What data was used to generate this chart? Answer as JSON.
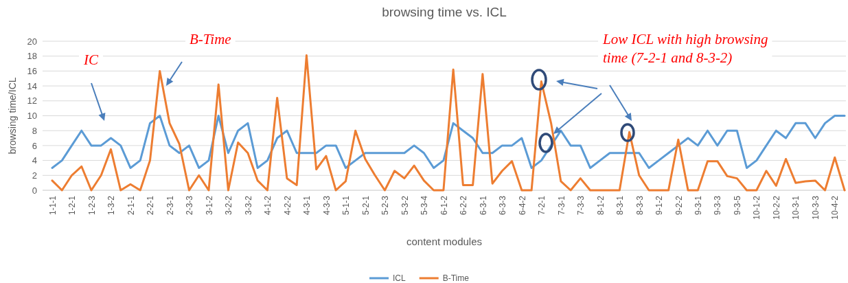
{
  "chart_data": {
    "type": "line",
    "title": "browsing time vs. ICL",
    "xlabel": "content modules",
    "ylabel": "browsing time/ICL",
    "categories": [
      "1-1-1",
      null,
      "1-2-1",
      null,
      "1-2-3",
      null,
      "1-3-2",
      null,
      "2-1-1",
      null,
      "2-2-1",
      null,
      "2-3-1",
      null,
      "2-3-3",
      null,
      "3-1-2",
      null,
      "3-2-2",
      null,
      "3-3-2",
      null,
      "4-1-2",
      null,
      "4-2-2",
      null,
      "4-3-1",
      null,
      "4-3-3",
      null,
      "5-1-1",
      null,
      "5-2-1",
      null,
      "5-2-3",
      null,
      "5-3-2",
      null,
      "5-3-4",
      null,
      "6-1-2",
      null,
      "6-2-2",
      null,
      "6-3-1",
      null,
      "6-3-3",
      null,
      "6-4-2",
      null,
      "7-2-1",
      null,
      "7-3-1",
      null,
      "7-3-3",
      null,
      "8-1-2",
      null,
      "8-3-1",
      null,
      "8-3-3",
      null,
      "9-1-2",
      null,
      "9-2-2",
      null,
      "9-3-1",
      null,
      "9-3-3",
      null,
      "9-3-5",
      null,
      "10-1-2",
      null,
      "10-2-2",
      null,
      "10-3-1",
      null,
      "10-3-3",
      null,
      "10-4-2",
      null
    ],
    "series": [
      {
        "name": "ICL",
        "color": "#5b9bd5",
        "values": [
          3,
          4,
          6,
          8,
          6,
          6,
          7,
          6,
          3,
          4,
          9,
          10,
          6,
          5,
          6,
          3,
          4,
          10,
          5,
          8,
          9,
          3,
          4,
          7,
          8,
          5,
          5,
          5,
          6,
          6,
          3,
          4,
          5,
          5,
          5,
          5,
          5,
          6,
          5,
          3,
          4,
          9,
          8,
          7,
          5,
          5,
          6,
          6,
          7,
          3,
          4,
          6,
          8,
          6,
          6,
          3,
          4,
          5,
          5,
          5,
          5,
          3,
          4,
          5,
          6,
          7,
          6,
          8,
          6,
          8,
          8,
          3,
          4,
          6,
          8,
          7,
          9,
          9,
          7,
          9,
          10,
          10
        ]
      },
      {
        "name": "B-Time",
        "color": "#ed7d31",
        "values": [
          1.3,
          0,
          2,
          3.2,
          0,
          2,
          5.5,
          0,
          0.8,
          0,
          4,
          16,
          9,
          6.2,
          0,
          2,
          0,
          14.2,
          0,
          6.4,
          5,
          1.3,
          0,
          12.4,
          1.6,
          0.7,
          18.1,
          2.8,
          4.6,
          0,
          1.2,
          8,
          4.2,
          2,
          0,
          2.6,
          1.6,
          3.3,
          1.3,
          0,
          0,
          16.2,
          0.7,
          0.7,
          15.6,
          0.9,
          2.6,
          3.9,
          0,
          0,
          14.6,
          9,
          1.2,
          0,
          1.6,
          0,
          0,
          0,
          0,
          7.8,
          2,
          0,
          0,
          0,
          6.8,
          0,
          0,
          3.9,
          3.9,
          1.9,
          1.6,
          0,
          0,
          2.6,
          0.6,
          4.2,
          1,
          1.2,
          1.3,
          0,
          4.4,
          0
        ]
      }
    ],
    "ylim": [
      0,
      20
    ],
    "yticks": [
      0,
      2,
      4,
      6,
      8,
      10,
      12,
      14,
      16,
      18,
      20
    ],
    "grid": "y",
    "legend": "bottom",
    "annotations": [
      "IC",
      "B-Time",
      "Low ICL with high browsing time (7-2-1 and 8-3-2)"
    ]
  }
}
